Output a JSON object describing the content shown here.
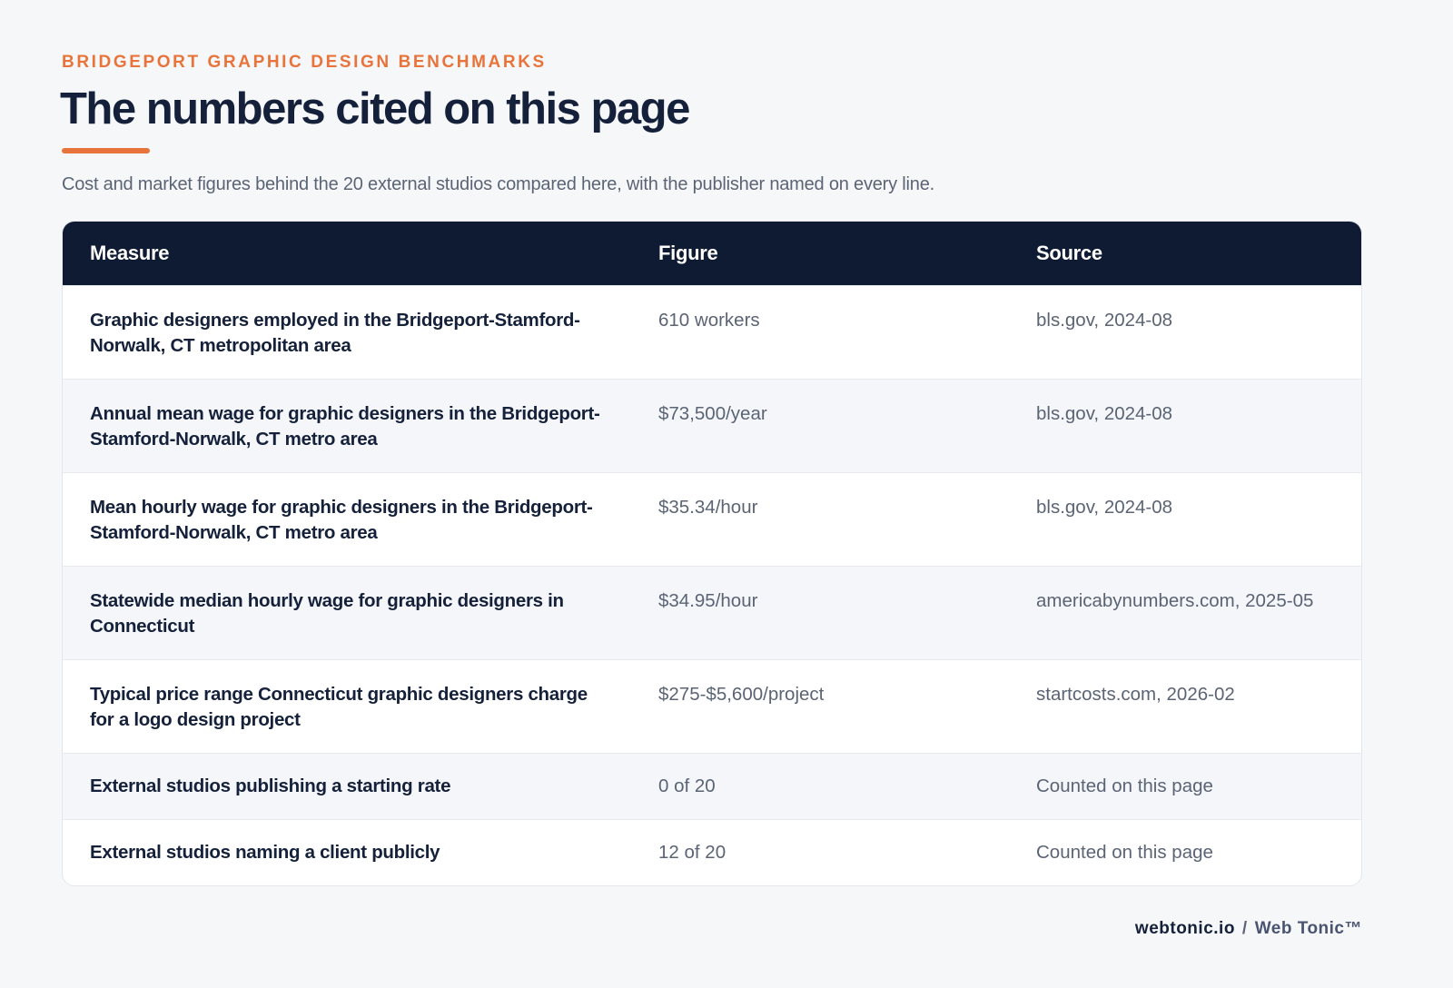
{
  "header": {
    "eyebrow": "BRIDGEPORT GRAPHIC DESIGN BENCHMARKS",
    "title": "The numbers cited on this page",
    "subtitle": "Cost and market figures behind the 20 external studios compared here, with the publisher named on every line."
  },
  "table": {
    "columns": [
      "Measure",
      "Figure",
      "Source"
    ],
    "rows": [
      [
        "Graphic designers employed in the Bridgeport-Stamford-Norwalk, CT metropolitan area",
        "610 workers",
        "bls.gov, 2024-08"
      ],
      [
        "Annual mean wage for graphic designers in the Bridgeport-Stamford-Norwalk, CT metro area",
        "$73,500/year",
        "bls.gov, 2024-08"
      ],
      [
        "Mean hourly wage for graphic designers in the Bridgeport-Stamford-Norwalk, CT metro area",
        "$35.34/hour",
        "bls.gov, 2024-08"
      ],
      [
        "Statewide median hourly wage for graphic designers in Connecticut",
        "$34.95/hour",
        "americabynumbers.com, 2025-05"
      ],
      [
        "Typical price range Connecticut graphic designers charge for a logo design project",
        "$275-$5,600/project",
        "startcosts.com, 2026-02"
      ],
      [
        "External studios publishing a starting rate",
        "0 of 20",
        "Counted on this page"
      ],
      [
        "External studios naming a client publicly",
        "12 of 20",
        "Counted on this page"
      ]
    ]
  },
  "footer": {
    "domain": "webtonic.io",
    "separator": "/",
    "brand": "Web Tonic™"
  }
}
